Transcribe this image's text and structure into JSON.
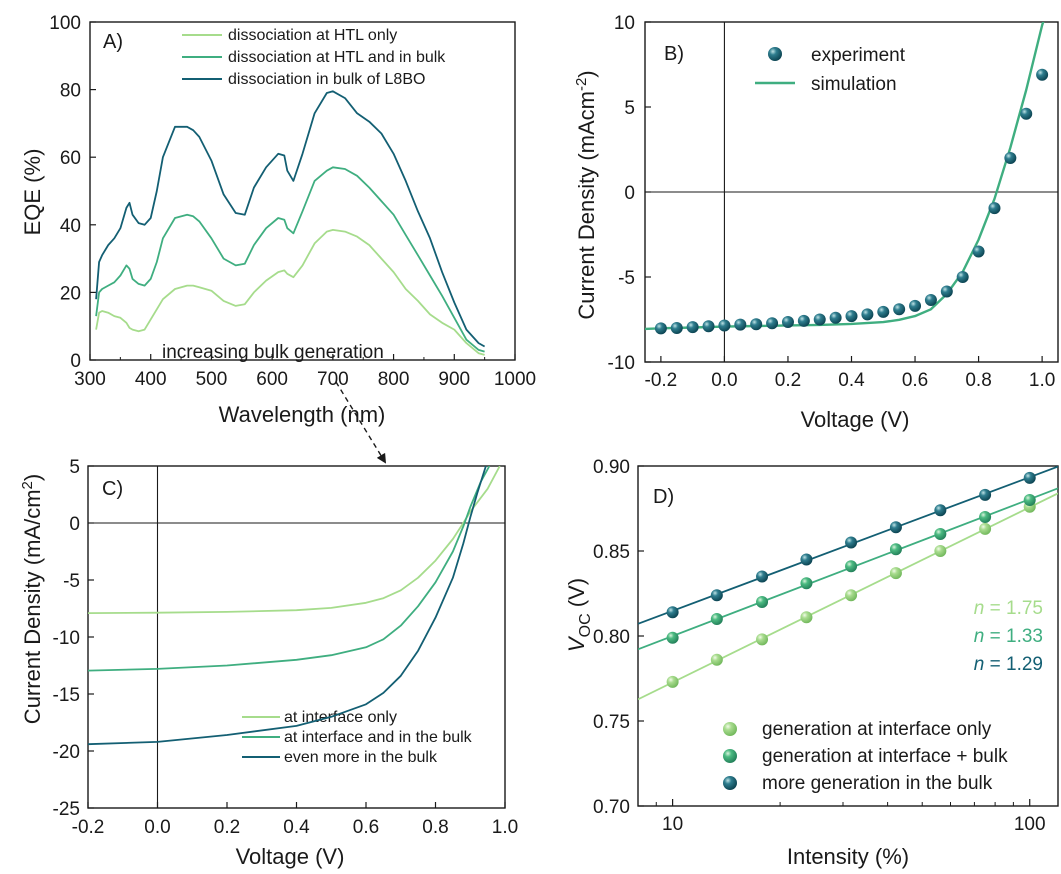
{
  "colors": {
    "light": "#a6dc8c",
    "mid": "#3fae80",
    "dark": "#135f73",
    "axis": "#1a1a1a"
  },
  "chart_data": [
    {
      "panel": "A)",
      "type": "line",
      "xlabel": "Wavelength (nm)",
      "ylabel": "EQE (%)",
      "xlim": [
        300,
        1000
      ],
      "ylim": [
        0,
        100
      ],
      "xticks": [
        "300",
        "400",
        "500",
        "600",
        "700",
        "800",
        "900",
        "1000"
      ],
      "yticks": [
        "0",
        "20",
        "40",
        "60",
        "80",
        "100"
      ],
      "grid": false,
      "legend_position": "top-right",
      "x": [
        310,
        315,
        320,
        330,
        340,
        350,
        360,
        365,
        370,
        380,
        390,
        400,
        410,
        420,
        440,
        460,
        470,
        480,
        500,
        520,
        540,
        555,
        570,
        590,
        610,
        620,
        625,
        635,
        650,
        670,
        690,
        700,
        720,
        740,
        760,
        780,
        800,
        820,
        840,
        860,
        880,
        900,
        920,
        940,
        950
      ],
      "series": [
        {
          "name": "dissociation at HTL only",
          "color_key": "light",
          "values": [
            9,
            14,
            14.5,
            14,
            13,
            12.5,
            11,
            9.5,
            9,
            8.5,
            9,
            12,
            15,
            18,
            21,
            22,
            22,
            21.5,
            20.5,
            17.5,
            16,
            16.5,
            20,
            23.5,
            26,
            26.5,
            25.5,
            24.5,
            28,
            34.5,
            38,
            38.5,
            38,
            36.5,
            34,
            30,
            26,
            21,
            17.5,
            13.5,
            11,
            9,
            5,
            2,
            1.5
          ]
        },
        {
          "name": "dissociation at HTL and in bulk",
          "color_key": "mid",
          "values": [
            13,
            20,
            21,
            22,
            23,
            25,
            28,
            27,
            24,
            22.5,
            22,
            24,
            29,
            36,
            42,
            43,
            42.5,
            41,
            36,
            30,
            28,
            28.5,
            34,
            39,
            42,
            41.5,
            39,
            37.5,
            44,
            53,
            56,
            57,
            56.5,
            54.5,
            51,
            47,
            43,
            37,
            31,
            25,
            19,
            12.5,
            6,
            3,
            2.5
          ]
        },
        {
          "name": "dissociation in bulk of L8BO",
          "color_key": "dark",
          "values": [
            18,
            29,
            31,
            34,
            36,
            39,
            45,
            46.5,
            43,
            40.5,
            40,
            42,
            50,
            60,
            69,
            69,
            68,
            66,
            59,
            49,
            43.5,
            43,
            51,
            57,
            61,
            60.5,
            56,
            53,
            61,
            73,
            79,
            79.5,
            77.5,
            73,
            70.5,
            67,
            61,
            53,
            44,
            36,
            26,
            17,
            9,
            5,
            4
          ]
        }
      ]
    },
    {
      "panel": "B)",
      "type": "scatter",
      "xlabel": "Voltage (V)",
      "ylabel": "Current Density (mAcm-2)",
      "xlim": [
        -0.25,
        1.05
      ],
      "ylim": [
        -10,
        10
      ],
      "xticks": [
        "-0.2",
        "0.0",
        "0.2",
        "0.4",
        "0.6",
        "0.8",
        "1.0"
      ],
      "yticks": [
        "-10",
        "-5",
        "0",
        "5",
        "10"
      ],
      "grid": false,
      "legend_position": "top-left",
      "series": [
        {
          "name": "experiment",
          "kind": "points",
          "color_key": "dark",
          "x": [
            -0.2,
            -0.15,
            -0.1,
            -0.05,
            0,
            0.05,
            0.1,
            0.15,
            0.2,
            0.25,
            0.3,
            0.35,
            0.4,
            0.45,
            0.5,
            0.55,
            0.6,
            0.65,
            0.7,
            0.75,
            0.8,
            0.85,
            0.9,
            0.95,
            1.0
          ],
          "values": [
            -8.02,
            -8.0,
            -7.95,
            -7.9,
            -7.85,
            -7.8,
            -7.78,
            -7.72,
            -7.65,
            -7.58,
            -7.5,
            -7.4,
            -7.3,
            -7.2,
            -7.05,
            -6.9,
            -6.7,
            -6.35,
            -5.85,
            -5.0,
            -3.5,
            -0.95,
            2.0,
            4.6,
            6.9
          ]
        },
        {
          "name": "simulation",
          "kind": "line",
          "color_key": "mid",
          "x": [
            -0.25,
            -0.2,
            -0.1,
            0,
            0.1,
            0.2,
            0.3,
            0.4,
            0.5,
            0.55,
            0.6,
            0.65,
            0.7,
            0.75,
            0.8,
            0.85,
            0.9,
            0.95,
            1.0,
            1.02
          ],
          "values": [
            -8.05,
            -8.02,
            -7.97,
            -7.92,
            -7.88,
            -7.85,
            -7.82,
            -7.76,
            -7.65,
            -7.52,
            -7.3,
            -6.9,
            -6.0,
            -4.7,
            -2.8,
            -0.4,
            2.6,
            6.0,
            9.8,
            11
          ]
        }
      ]
    },
    {
      "panel": "C)",
      "type": "line",
      "xlabel": "Voltage (V)",
      "ylabel": "Current Density (mA/cm2)",
      "xlim": [
        -0.2,
        1.0
      ],
      "ylim": [
        -25,
        5
      ],
      "xticks": [
        "-0.2",
        "0.0",
        "0.2",
        "0.4",
        "0.6",
        "0.8",
        "1.0"
      ],
      "yticks": [
        "-25",
        "-20",
        "-15",
        "-10",
        "-5",
        "0",
        "5"
      ],
      "grid": false,
      "legend_position": "bottom-center",
      "annotation": "increasing bulk generation",
      "series": [
        {
          "name": "at interface only",
          "color_key": "light",
          "x": [
            -0.2,
            0,
            0.2,
            0.4,
            0.5,
            0.6,
            0.65,
            0.7,
            0.75,
            0.8,
            0.85,
            0.88,
            0.9,
            0.95,
            0.985
          ],
          "values": [
            -7.9,
            -7.87,
            -7.8,
            -7.65,
            -7.45,
            -7.0,
            -6.6,
            -5.9,
            -4.8,
            -3.3,
            -1.4,
            0,
            1.0,
            3.0,
            5
          ]
        },
        {
          "name": "at interface and in the bulk",
          "color_key": "mid",
          "x": [
            -0.2,
            0,
            0.2,
            0.4,
            0.5,
            0.6,
            0.65,
            0.7,
            0.75,
            0.8,
            0.85,
            0.88,
            0.9,
            0.93,
            0.955
          ],
          "values": [
            -12.95,
            -12.8,
            -12.5,
            -12.0,
            -11.6,
            -10.9,
            -10.2,
            -9.0,
            -7.3,
            -5.2,
            -2.5,
            -0.3,
            1.4,
            3.6,
            5
          ]
        },
        {
          "name": "even more in the bulk",
          "color_key": "dark",
          "x": [
            -0.2,
            0,
            0.2,
            0.4,
            0.5,
            0.6,
            0.65,
            0.7,
            0.75,
            0.8,
            0.85,
            0.88,
            0.9,
            0.92,
            0.945
          ],
          "values": [
            -19.4,
            -19.2,
            -18.6,
            -17.8,
            -17.0,
            -15.9,
            -14.9,
            -13.4,
            -11.2,
            -8.3,
            -4.8,
            -1.8,
            0.5,
            2.6,
            5
          ]
        }
      ]
    },
    {
      "panel": "D)",
      "type": "scatter",
      "xlabel": "Intensity (%)",
      "ylabel": "V_OC (V)",
      "x_scale": "log",
      "xlim": [
        8,
        120
      ],
      "ylim": [
        0.7,
        0.9
      ],
      "xticks": [
        "10",
        "100"
      ],
      "yticks": [
        "0.70",
        "0.75",
        "0.80",
        "0.85",
        "0.90"
      ],
      "grid": false,
      "legend_position": "bottom-right",
      "x": [
        10,
        13.3,
        17.8,
        23.7,
        31.6,
        42.2,
        56.2,
        75,
        100
      ],
      "series": [
        {
          "name": "generation at interface only",
          "color_key": "light",
          "n_label": "n = 1.75",
          "values": [
            0.773,
            0.786,
            0.798,
            0.811,
            0.824,
            0.837,
            0.85,
            0.863,
            0.876
          ]
        },
        {
          "name": "generation at interface + bulk",
          "color_key": "mid",
          "n_label": "n = 1.33",
          "values": [
            0.799,
            0.81,
            0.82,
            0.831,
            0.841,
            0.851,
            0.86,
            0.87,
            0.88
          ]
        },
        {
          "name": "more generation in the bulk",
          "color_key": "dark",
          "n_label": "n = 1.29",
          "values": [
            0.814,
            0.824,
            0.835,
            0.845,
            0.855,
            0.864,
            0.874,
            0.883,
            0.893
          ]
        }
      ]
    }
  ]
}
